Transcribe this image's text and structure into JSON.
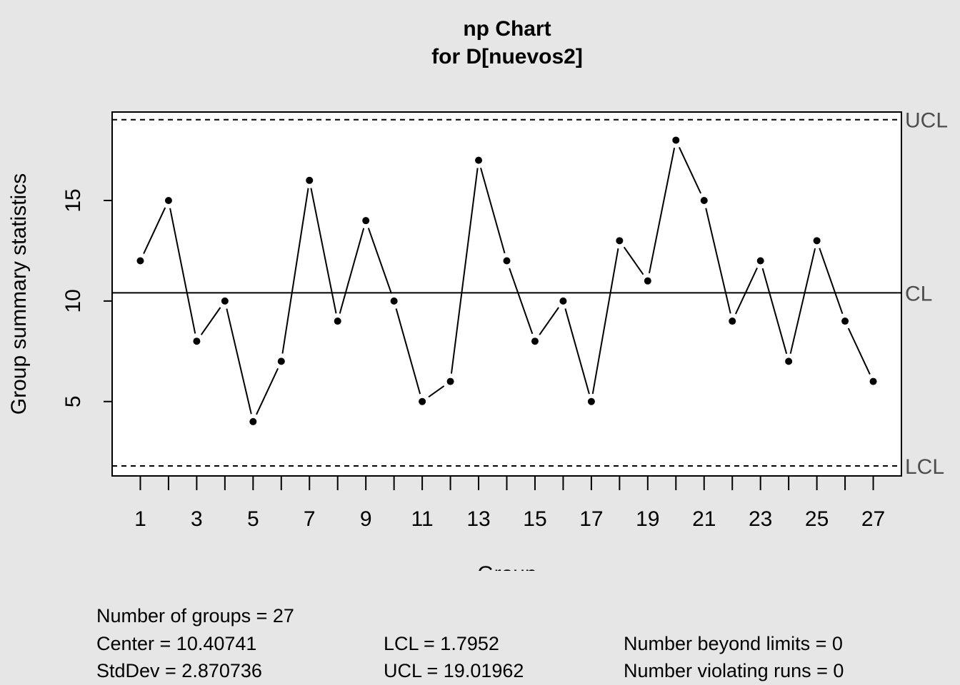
{
  "chart_data": {
    "type": "line",
    "title": "np Chart",
    "subtitle": "for D[nuevos2]",
    "xlabel": "Group",
    "ylabel": "Group summary statistics",
    "x": [
      1,
      2,
      3,
      4,
      5,
      6,
      7,
      8,
      9,
      10,
      11,
      12,
      13,
      14,
      15,
      16,
      17,
      18,
      19,
      20,
      21,
      22,
      23,
      24,
      25,
      26,
      27
    ],
    "values": [
      12,
      15,
      8,
      10,
      4,
      7,
      16,
      9,
      14,
      10,
      5,
      6,
      17,
      12,
      8,
      10,
      5,
      13,
      11,
      18,
      15,
      9,
      12,
      7,
      13,
      9,
      6
    ],
    "xlim": [
      0,
      28
    ],
    "ylim": [
      1.3,
      19.4
    ],
    "x_tick_values": [
      1,
      2,
      3,
      4,
      5,
      6,
      7,
      8,
      9,
      10,
      11,
      12,
      13,
      14,
      15,
      16,
      17,
      18,
      19,
      20,
      21,
      22,
      23,
      24,
      25,
      26,
      27
    ],
    "x_tick_labels": [
      "1",
      "3",
      "5",
      "7",
      "9",
      "11",
      "13",
      "15",
      "17",
      "19",
      "21",
      "23",
      "25",
      "27"
    ],
    "x_tick_label_values": [
      1,
      3,
      5,
      7,
      9,
      11,
      13,
      15,
      17,
      19,
      21,
      23,
      25,
      27
    ],
    "y_ticks": [
      5,
      10,
      15
    ],
    "y_tick_labels": [
      "5",
      "10",
      "15"
    ],
    "limits": {
      "ucl": 19.01962,
      "cl": 10.40741,
      "lcl": 1.7952,
      "ucl_label": "UCL",
      "cl_label": "CL",
      "lcl_label": "LCL"
    },
    "grid": false
  },
  "stats": {
    "groups": "Number of groups = 27",
    "center": "Center = 10.40741",
    "stddev": "StdDev = 2.870736",
    "lcl": "LCL = 1.7952",
    "ucl": "UCL = 19.01962",
    "beyond": "Number beyond limits = 0",
    "violating": "Number violating runs = 0"
  },
  "colors": {
    "background": "#e6e6e6",
    "plot_background": "#ffffff",
    "line": "#000000",
    "limit_label": "#4d4d4d"
  }
}
